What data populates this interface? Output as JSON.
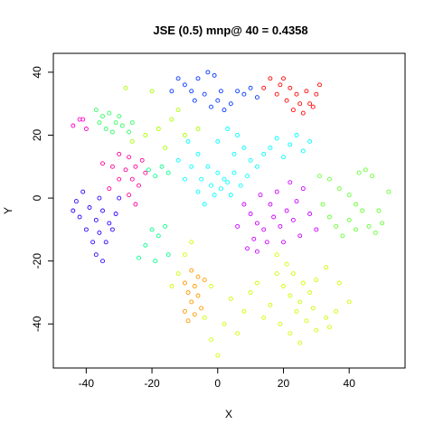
{
  "chart_data": {
    "type": "scatter",
    "title": "JSE (0.5) mnp@ 40 = 0.4358",
    "xlabel": "X",
    "ylabel": "Y",
    "xlim": [
      -50,
      57
    ],
    "ylim": [
      -54,
      46
    ],
    "xticks": [
      -40,
      -20,
      0,
      20,
      40
    ],
    "yticks": [
      -40,
      -20,
      0,
      20,
      40
    ],
    "xtick_labels": [
      "-40",
      "-20",
      "0",
      "20",
      "40"
    ],
    "ytick_labels": [
      "-40",
      "-20",
      "0",
      "20",
      "40"
    ],
    "grid": false,
    "legend": "none",
    "marker": "open-circle",
    "clusters": [
      {
        "color": "#0033ff",
        "points": [
          [
            -3,
            40
          ],
          [
            -6,
            38
          ],
          [
            -1,
            39
          ],
          [
            -10,
            36
          ],
          [
            -8,
            34
          ],
          [
            -4,
            33
          ],
          [
            0,
            31
          ],
          [
            -2,
            29
          ],
          [
            2,
            28
          ],
          [
            4,
            30
          ],
          [
            -7,
            31
          ],
          [
            1,
            34
          ],
          [
            6,
            34
          ],
          [
            8,
            33
          ],
          [
            10,
            35
          ],
          [
            12,
            32
          ],
          [
            -12,
            38
          ],
          [
            -14,
            34
          ]
        ]
      },
      {
        "color": "#ff0000",
        "points": [
          [
            16,
            38
          ],
          [
            19,
            36
          ],
          [
            22,
            35
          ],
          [
            24,
            33
          ],
          [
            27,
            34
          ],
          [
            30,
            33
          ],
          [
            21,
            31
          ],
          [
            25,
            30
          ],
          [
            28,
            30
          ],
          [
            18,
            33
          ],
          [
            23,
            28
          ],
          [
            26,
            27
          ],
          [
            31,
            36
          ],
          [
            20,
            38
          ],
          [
            14,
            35
          ],
          [
            29,
            29
          ]
        ]
      },
      {
        "color": "#33ff66",
        "points": [
          [
            -37,
            28
          ],
          [
            -35,
            26
          ],
          [
            -33,
            27
          ],
          [
            -36,
            24
          ],
          [
            -31,
            24
          ],
          [
            -29,
            23
          ],
          [
            -34,
            22
          ],
          [
            -32,
            21
          ],
          [
            -27,
            21
          ],
          [
            -30,
            26
          ],
          [
            -26,
            24
          ]
        ]
      },
      {
        "color": "#ff00cc",
        "points": [
          [
            -42,
            25
          ],
          [
            -44,
            23
          ],
          [
            -40,
            22
          ],
          [
            -41,
            25
          ]
        ]
      },
      {
        "color": "#00ffff",
        "points": [
          [
            -3,
            10
          ],
          [
            0,
            8
          ],
          [
            2,
            6
          ],
          [
            -5,
            6
          ],
          [
            -2,
            4
          ],
          [
            1,
            3
          ],
          [
            3,
            5
          ],
          [
            5,
            8
          ],
          [
            -6,
            2
          ],
          [
            -1,
            1
          ],
          [
            4,
            1
          ],
          [
            7,
            4
          ],
          [
            9,
            7
          ],
          [
            10,
            12
          ],
          [
            12,
            10
          ],
          [
            14,
            14
          ],
          [
            16,
            16
          ],
          [
            18,
            19
          ],
          [
            20,
            13
          ],
          [
            22,
            17
          ],
          [
            8,
            16
          ],
          [
            5,
            14
          ],
          [
            -8,
            10
          ],
          [
            -10,
            6
          ],
          [
            -12,
            12
          ],
          [
            0,
            18
          ],
          [
            3,
            22
          ],
          [
            -4,
            -2
          ],
          [
            24,
            20
          ],
          [
            26,
            15
          ],
          [
            28,
            18
          ],
          [
            -6,
            14
          ],
          [
            -9,
            18
          ],
          [
            6,
            20
          ]
        ]
      },
      {
        "color": "#ff0099",
        "points": [
          [
            -30,
            14
          ],
          [
            -27,
            13
          ],
          [
            -25,
            10
          ],
          [
            -28,
            9
          ],
          [
            -26,
            6
          ],
          [
            -24,
            4
          ],
          [
            -30,
            6
          ],
          [
            -32,
            10
          ],
          [
            -22,
            8
          ],
          [
            -27,
            1
          ],
          [
            -25,
            -2
          ],
          [
            -23,
            12
          ],
          [
            -35,
            11
          ],
          [
            -33,
            3
          ]
        ]
      },
      {
        "color": "#3300ff",
        "points": [
          [
            -44,
            -4
          ],
          [
            -42,
            -6
          ],
          [
            -39,
            -3
          ],
          [
            -37,
            -7
          ],
          [
            -35,
            -4
          ],
          [
            -33,
            -8
          ],
          [
            -36,
            -11
          ],
          [
            -38,
            -14
          ],
          [
            -34,
            -14
          ],
          [
            -32,
            -10
          ],
          [
            -40,
            -10
          ],
          [
            -43,
            -1
          ],
          [
            -37,
            -18
          ],
          [
            -35,
            -20
          ],
          [
            -31,
            -5
          ],
          [
            -36,
            0
          ],
          [
            -41,
            2
          ],
          [
            -30,
            0
          ]
        ]
      },
      {
        "color": "#cc00ff",
        "points": [
          [
            8,
            -2
          ],
          [
            10,
            -5
          ],
          [
            12,
            -8
          ],
          [
            14,
            -10
          ],
          [
            11,
            -13
          ],
          [
            9,
            -16
          ],
          [
            12,
            -17
          ],
          [
            15,
            -14
          ],
          [
            17,
            -6
          ],
          [
            19,
            -9
          ],
          [
            21,
            -4
          ],
          [
            23,
            -7
          ],
          [
            25,
            -12
          ],
          [
            20,
            -14
          ],
          [
            16,
            -2
          ],
          [
            13,
            1
          ],
          [
            6,
            -9
          ],
          [
            28,
            -5
          ],
          [
            30,
            -10
          ],
          [
            18,
            2
          ],
          [
            22,
            5
          ],
          [
            26,
            3
          ],
          [
            24,
            -1
          ]
        ]
      },
      {
        "color": "#66ff33",
        "points": [
          [
            34,
            6
          ],
          [
            37,
            3
          ],
          [
            40,
            1
          ],
          [
            42,
            -2
          ],
          [
            44,
            -4
          ],
          [
            40,
            -7
          ],
          [
            36,
            -9
          ],
          [
            38,
            -12
          ],
          [
            42,
            -10
          ],
          [
            46,
            -9
          ],
          [
            48,
            -11
          ],
          [
            50,
            -8
          ],
          [
            49,
            -4
          ],
          [
            45,
            9
          ],
          [
            43,
            8
          ],
          [
            47,
            7
          ],
          [
            32,
            -2
          ],
          [
            34,
            -6
          ],
          [
            52,
            2
          ],
          [
            31,
            7
          ]
        ]
      },
      {
        "color": "#00ff88",
        "points": [
          [
            -20,
            -10
          ],
          [
            -18,
            -12
          ],
          [
            -16,
            -9
          ],
          [
            -22,
            -15
          ],
          [
            -19,
            -20
          ],
          [
            -15,
            -18
          ],
          [
            -24,
            -19
          ],
          [
            -21,
            9
          ],
          [
            -19,
            7
          ],
          [
            -17,
            10
          ],
          [
            -15,
            8
          ]
        ]
      },
      {
        "color": "#ccff00",
        "points": [
          [
            18,
            -18
          ],
          [
            21,
            -21
          ],
          [
            23,
            -24
          ],
          [
            26,
            -27
          ],
          [
            20,
            -28
          ],
          [
            22,
            -31
          ],
          [
            25,
            -33
          ],
          [
            28,
            -30
          ],
          [
            30,
            -26
          ],
          [
            24,
            -36
          ],
          [
            27,
            -39
          ],
          [
            30,
            -42
          ],
          [
            33,
            -38
          ],
          [
            36,
            -36
          ],
          [
            34,
            -41
          ],
          [
            22,
            -43
          ],
          [
            25,
            -46
          ],
          [
            16,
            -34
          ],
          [
            14,
            -38
          ],
          [
            12,
            -27
          ],
          [
            10,
            -30
          ],
          [
            33,
            -22
          ],
          [
            37,
            -27
          ],
          [
            40,
            -33
          ],
          [
            18,
            -24
          ],
          [
            29,
            -35
          ],
          [
            19,
            -40
          ],
          [
            8,
            -36
          ],
          [
            6,
            -43
          ],
          [
            2,
            -40
          ],
          [
            -2,
            -45
          ],
          [
            0,
            -50
          ],
          [
            -4,
            -38
          ],
          [
            -10,
            -18
          ],
          [
            -12,
            -24
          ],
          [
            -8,
            -14
          ],
          [
            -14,
            -28
          ],
          [
            -2,
            -28
          ],
          [
            4,
            -32
          ]
        ]
      },
      {
        "color": "#ff9900",
        "points": [
          [
            -8,
            -23
          ],
          [
            -6,
            -25
          ],
          [
            -7,
            -28
          ],
          [
            -9,
            -30
          ],
          [
            -6,
            -31
          ],
          [
            -8,
            -33
          ],
          [
            -10,
            -36
          ],
          [
            -7,
            -37
          ],
          [
            -9,
            -39
          ],
          [
            -5,
            -35
          ],
          [
            -10,
            -27
          ],
          [
            -4,
            -26
          ]
        ]
      },
      {
        "color": "#aaff00",
        "points": [
          [
            -26,
            18
          ],
          [
            -22,
            20
          ],
          [
            -18,
            22
          ],
          [
            -14,
            25
          ],
          [
            -10,
            20
          ],
          [
            -16,
            16
          ],
          [
            -28,
            35
          ],
          [
            -20,
            34
          ],
          [
            -12,
            28
          ],
          [
            -6,
            22
          ]
        ]
      }
    ]
  }
}
